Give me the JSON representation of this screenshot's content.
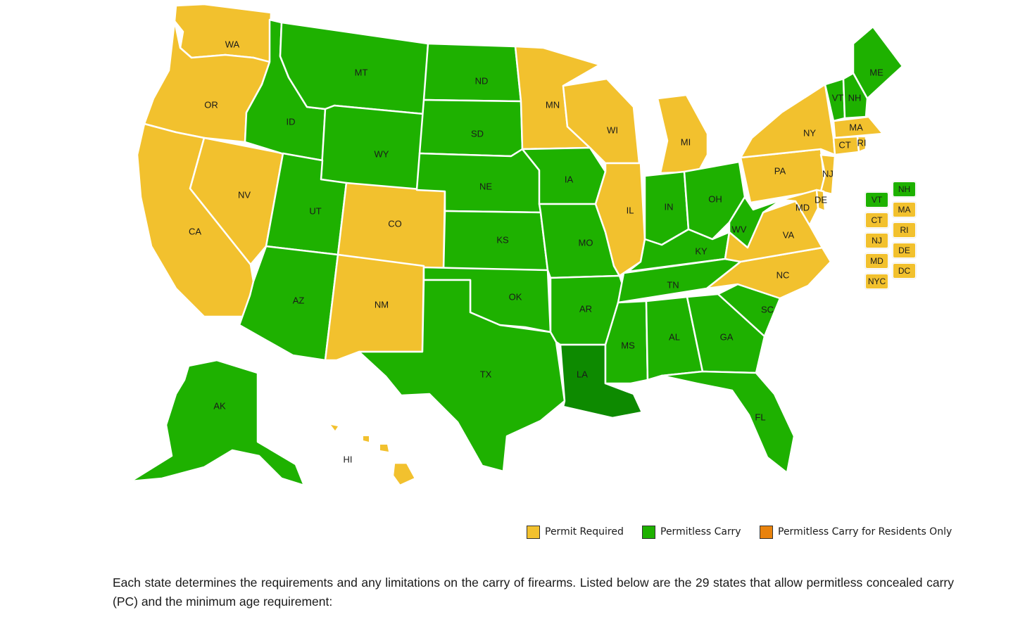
{
  "colors": {
    "permit": "#f2c12e",
    "permitless": "#1eb100",
    "residents_only": "#e8820c",
    "louisiana": "#0d8a00"
  },
  "states": {
    "WA": "permit",
    "OR": "permit",
    "CA": "permit",
    "NV": "permit",
    "ID": "permitless",
    "MT": "permitless",
    "WY": "permitless",
    "UT": "permitless",
    "AZ": "permitless",
    "CO": "permit",
    "NM": "permit",
    "ND": "permitless",
    "SD": "permitless",
    "NE": "permitless",
    "KS": "permitless",
    "OK": "permitless",
    "TX": "permitless",
    "MN": "permit",
    "IA": "permitless",
    "MO": "permitless",
    "AR": "permitless",
    "LA": "louisiana",
    "WI": "permit",
    "IL": "permit",
    "MI": "permit",
    "IN": "permitless",
    "OH": "permitless",
    "KY": "permitless",
    "TN": "permitless",
    "MS": "permitless",
    "AL": "permitless",
    "GA": "permitless",
    "FL": "permitless",
    "SC": "permitless",
    "NC": "permit",
    "VA": "permit",
    "WV": "permitless",
    "PA": "permit",
    "NY": "permit",
    "ME": "permitless",
    "VT": "permitless",
    "NH": "permitless",
    "MA": "permit",
    "CT": "permit",
    "RI": "permit",
    "NJ": "permit",
    "DE": "permit",
    "MD": "permit",
    "AK": "permitless",
    "HI": "permit"
  },
  "small_states": [
    {
      "label": "VT",
      "status": "permitless"
    },
    {
      "label": "NH",
      "status": "permitless"
    },
    {
      "label": "CT",
      "status": "permit"
    },
    {
      "label": "MA",
      "status": "permit"
    },
    {
      "label": "NJ",
      "status": "permit"
    },
    {
      "label": "RI",
      "status": "permit"
    },
    {
      "label": "MD",
      "status": "permit"
    },
    {
      "label": "DE",
      "status": "permit"
    },
    {
      "label": "NYC",
      "status": "permit"
    },
    {
      "label": "DC",
      "status": "permit"
    }
  ],
  "legend": {
    "permit_required": "Permit Required",
    "permitless_carry": "Permitless Carry",
    "residents_only": "Permitless Carry for Residents Only"
  },
  "paragraph": "Each state determines the requirements and any limitations on the carry of firearms. Listed below are the 29 states that allow permitless concealed carry (PC) and the minimum age requirement:"
}
